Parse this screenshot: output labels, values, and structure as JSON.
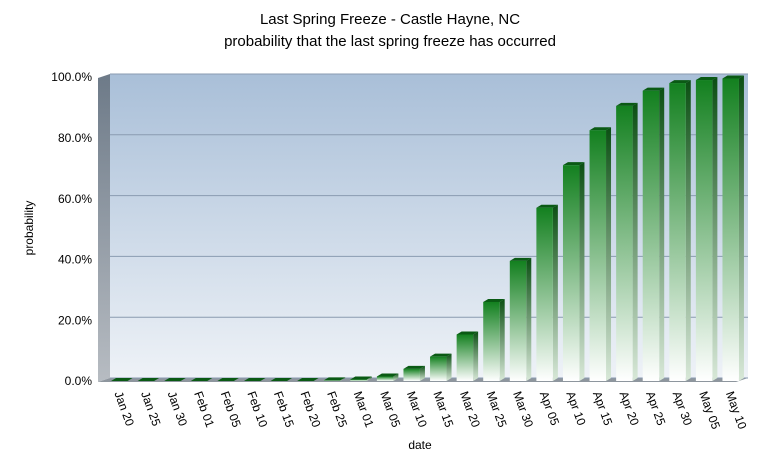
{
  "chart_data": {
    "type": "bar",
    "title": "Last Spring Freeze - Castle Hayne, NC",
    "subtitle": "probability that the last spring freeze has occurred",
    "x_label": "date",
    "y_label": "probability",
    "categories": [
      "Jan 20",
      "Jan 25",
      "Jan 30",
      "Feb 01",
      "Feb 05",
      "Feb 10",
      "Feb 15",
      "Feb 20",
      "Feb 25",
      "Mar 01",
      "Mar 05",
      "Mar 10",
      "Mar 15",
      "Mar 20",
      "Mar 25",
      "Mar 30",
      "Apr 05",
      "Apr 10",
      "Apr 15",
      "Apr 20",
      "Apr 25",
      "Apr 30",
      "May 05",
      "May 10"
    ],
    "values": [
      0,
      0,
      0,
      0,
      0,
      0,
      0,
      0,
      0.2,
      0.5,
      1.5,
      4,
      8,
      15.3,
      26,
      39.5,
      57,
      71,
      82.5,
      90.5,
      95.5,
      98,
      99,
      99.5
    ],
    "color": "#13801f",
    "ylim": [
      0,
      100
    ],
    "yticks": [
      {
        "value": 0,
        "label": "0.0%"
      },
      {
        "value": 20,
        "label": "20.0%"
      },
      {
        "value": 40,
        "label": "40.0%"
      },
      {
        "value": 60,
        "label": "60.0%"
      },
      {
        "value": 80,
        "label": "80.0%"
      },
      {
        "value": 100,
        "label": "100.0%"
      }
    ],
    "grid": true
  }
}
